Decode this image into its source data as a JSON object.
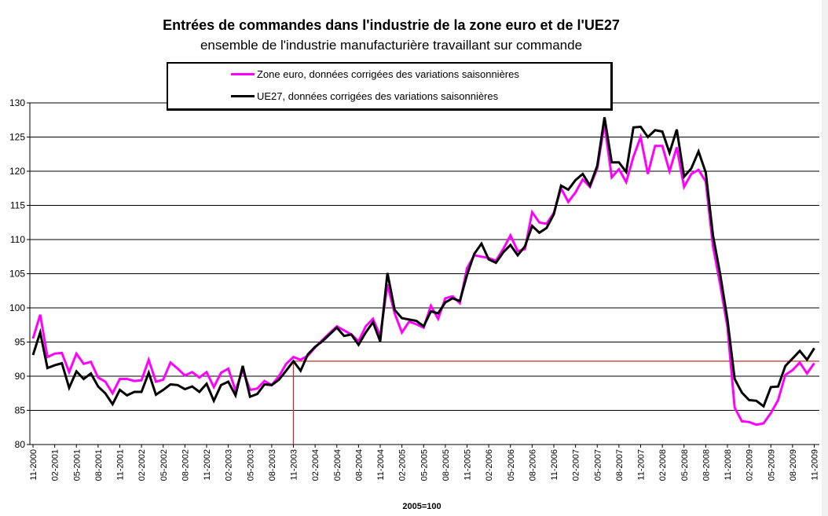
{
  "chart_data": {
    "type": "line",
    "title": "Entrées de commandes dans l'industrie de la zone euro et de l'UE27",
    "subtitle": "ensemble de l'industrie manufacturière travaillant sur commande",
    "xlabel": "2005=100",
    "ylabel": "",
    "ylim": [
      80,
      130
    ],
    "yticks": [
      "80",
      "85",
      "90",
      "95",
      "100",
      "105",
      "110",
      "115",
      "120",
      "125",
      "130"
    ],
    "grid": true,
    "legend_placement": "top-center",
    "x_start": "11-2000",
    "x_end": "11-2009",
    "x_frequency": "monthly",
    "xtick_labels": [
      "11-2000",
      "02-2001",
      "05-2001",
      "08-2001",
      "11-2001",
      "02-2002",
      "05-2002",
      "08-2002",
      "11-2002",
      "02-2003",
      "05-2003",
      "08-2003",
      "11-2003",
      "02-2004",
      "05-2004",
      "08-2004",
      "11-2004",
      "02-2005",
      "05-2005",
      "08-2005",
      "11-2005",
      "02-2006",
      "05-2006",
      "08-2006",
      "11-2006",
      "02-2007",
      "05-2007",
      "08-2007",
      "11-2007",
      "02-2008",
      "05-2008",
      "08-2008",
      "11-2008",
      "02-2009",
      "05-2009",
      "08-2009",
      "11-2009"
    ],
    "series": [
      {
        "name": "Zone euro, données corrigées des variations saisonnières",
        "color": "#ff00ff",
        "values": [
          95.5,
          99,
          92.8,
          93.3,
          93.4,
          90.6,
          93.3,
          91.8,
          92.1,
          89.8,
          89.2,
          87.5,
          89.6,
          89.6,
          89.3,
          89.4,
          92.4,
          89.2,
          89.5,
          92,
          91.1,
          90.1,
          90.6,
          89.8,
          90.6,
          88.4,
          90.5,
          91.1,
          87.9,
          90.9,
          88,
          88.2,
          89.3,
          88.7,
          90,
          91.8,
          92.8,
          92.4,
          93,
          94.2,
          95.3,
          96.3,
          97.3,
          96.7,
          96.1,
          95.1,
          97.3,
          98.4,
          95.9,
          103.4,
          99.2,
          96.4,
          98,
          97.6,
          97.1,
          100.3,
          98.4,
          101.4,
          101.7,
          100.7,
          105.8,
          107.7,
          107.5,
          107.3,
          106.9,
          108.6,
          110.6,
          108.3,
          108.6,
          114,
          112.5,
          112.3,
          113.9,
          117.5,
          115.5,
          116.9,
          118.8,
          117.7,
          120.4,
          126.9,
          119.1,
          120.3,
          118.4,
          122.1,
          125,
          119.6,
          123.7,
          123.7,
          120,
          123.5,
          117.7,
          119.6,
          120.2,
          118.5,
          109,
          103.4,
          97.2,
          85.4,
          83.4,
          83.3,
          82.9,
          83.1,
          84.6,
          86.5,
          90.2,
          90.9,
          92,
          90.4,
          91.9
        ]
      },
      {
        "name": "UE27, données corrigées des variations saisonnières",
        "color": "#000000",
        "values": [
          93.1,
          96.4,
          91.2,
          91.6,
          91.9,
          88.3,
          90.7,
          89.6,
          90.4,
          88.5,
          87.5,
          85.9,
          88,
          87.2,
          87.7,
          87.7,
          90.5,
          87.3,
          88,
          88.8,
          88.7,
          88.1,
          88.5,
          87.7,
          88.9,
          86.4,
          88.7,
          89.2,
          87.2,
          91.5,
          87,
          87.4,
          88.8,
          88.7,
          89.5,
          90.8,
          92.2,
          90.8,
          93.2,
          94.3,
          95.1,
          96.1,
          97.1,
          95.9,
          96.1,
          94.6,
          96.4,
          97.9,
          95.1,
          105.1,
          99.7,
          98.5,
          98.3,
          98.1,
          97.3,
          99.5,
          99.2,
          100.8,
          101.4,
          101,
          104.8,
          107.9,
          109.4,
          107.1,
          106.6,
          108.1,
          109.2,
          107.7,
          109,
          112,
          111,
          111.7,
          113.7,
          117.9,
          117.3,
          118.7,
          119.6,
          117.9,
          120.8,
          127.9,
          121.3,
          121.3,
          119.9,
          126.4,
          126.5,
          125,
          126,
          125.8,
          122.7,
          126.1,
          119.2,
          120.4,
          122.9,
          119.8,
          110.6,
          104.9,
          98.3,
          89.6,
          87.6,
          86.5,
          86.4,
          85.6,
          88.4,
          88.5,
          91.5,
          92.6,
          93.7,
          92.4,
          94.1
        ]
      }
    ],
    "reference_line": {
      "level": 92.2,
      "from_month_index": 36,
      "color": "#c0302a"
    }
  }
}
